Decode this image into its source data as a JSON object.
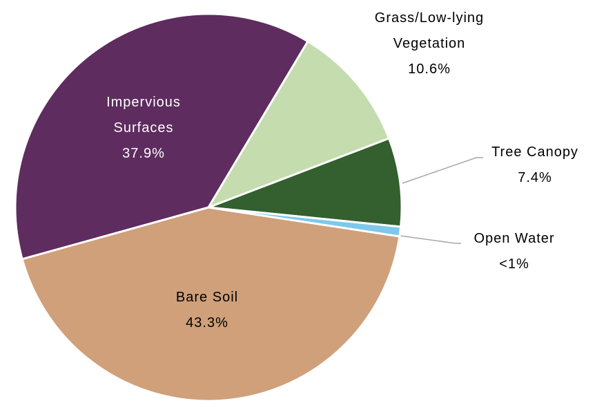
{
  "chart_data": {
    "type": "pie",
    "categories": [
      "Impervious Surfaces",
      "Grass/Low-lying Vegetation",
      "Tree Canopy",
      "Open Water",
      "Bare Soil"
    ],
    "values": [
      37.9,
      10.6,
      7.4,
      0.8,
      43.3
    ],
    "value_labels": [
      "37.9%",
      "10.6%",
      "7.4%",
      "<1%",
      "43.3%"
    ],
    "colors": [
      "#5e2c5e",
      "#c5dcae",
      "#33602e",
      "#7ec8ea",
      "#cfa07a"
    ]
  }
}
